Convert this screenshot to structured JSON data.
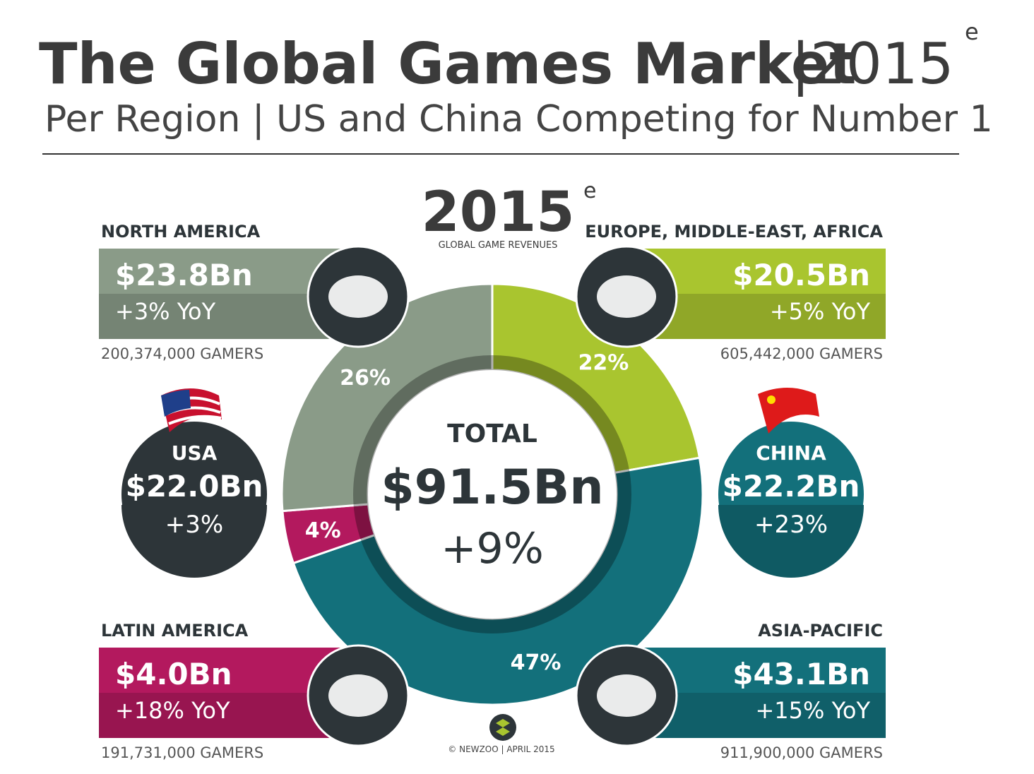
{
  "chart_data": {
    "type": "donut",
    "title": "The Global Games Market",
    "title_year": "|2015",
    "title_mark": "e",
    "subtitle": "Per Region | US and China Competing for Number 1",
    "year_label": "2015",
    "year_mark": "e",
    "year_caption": "GLOBAL GAME REVENUES",
    "categories": [
      "EUROPE, MIDDLE-EAST, AFRICA",
      "ASIA-PACIFIC",
      "LATIN AMERICA",
      "NORTH AMERICA"
    ],
    "values": [
      22,
      47,
      4,
      26
    ],
    "value_labels": [
      "22%",
      "47%",
      "4%",
      "26%"
    ],
    "colors": [
      "#a9c52f",
      "#13707b",
      "#b3195e",
      "#8a9b88"
    ],
    "revenues": [
      "$20.5Bn",
      "$43.1Bn",
      "$4.0Bn",
      "$23.8Bn"
    ],
    "growth": [
      "+5% YoY",
      "+15% YoY",
      "+18% YoY",
      "+3% YoY"
    ],
    "gamers": [
      "605,442,000 GAMERS",
      "911,900,000 GAMERS",
      "191,731,000 GAMERS",
      "200,374,000 GAMERS"
    ],
    "center_label": "TOTAL",
    "total": "$91.5Bn",
    "total_growth": "+9%",
    "countries": [
      {
        "name": "USA",
        "revenue": "$22.0Bn",
        "growth": "+3%"
      },
      {
        "name": "CHINA",
        "revenue": "$22.2Bn",
        "growth": "+23%"
      }
    ],
    "credit": "© NEWZOO | APRIL 2015"
  }
}
